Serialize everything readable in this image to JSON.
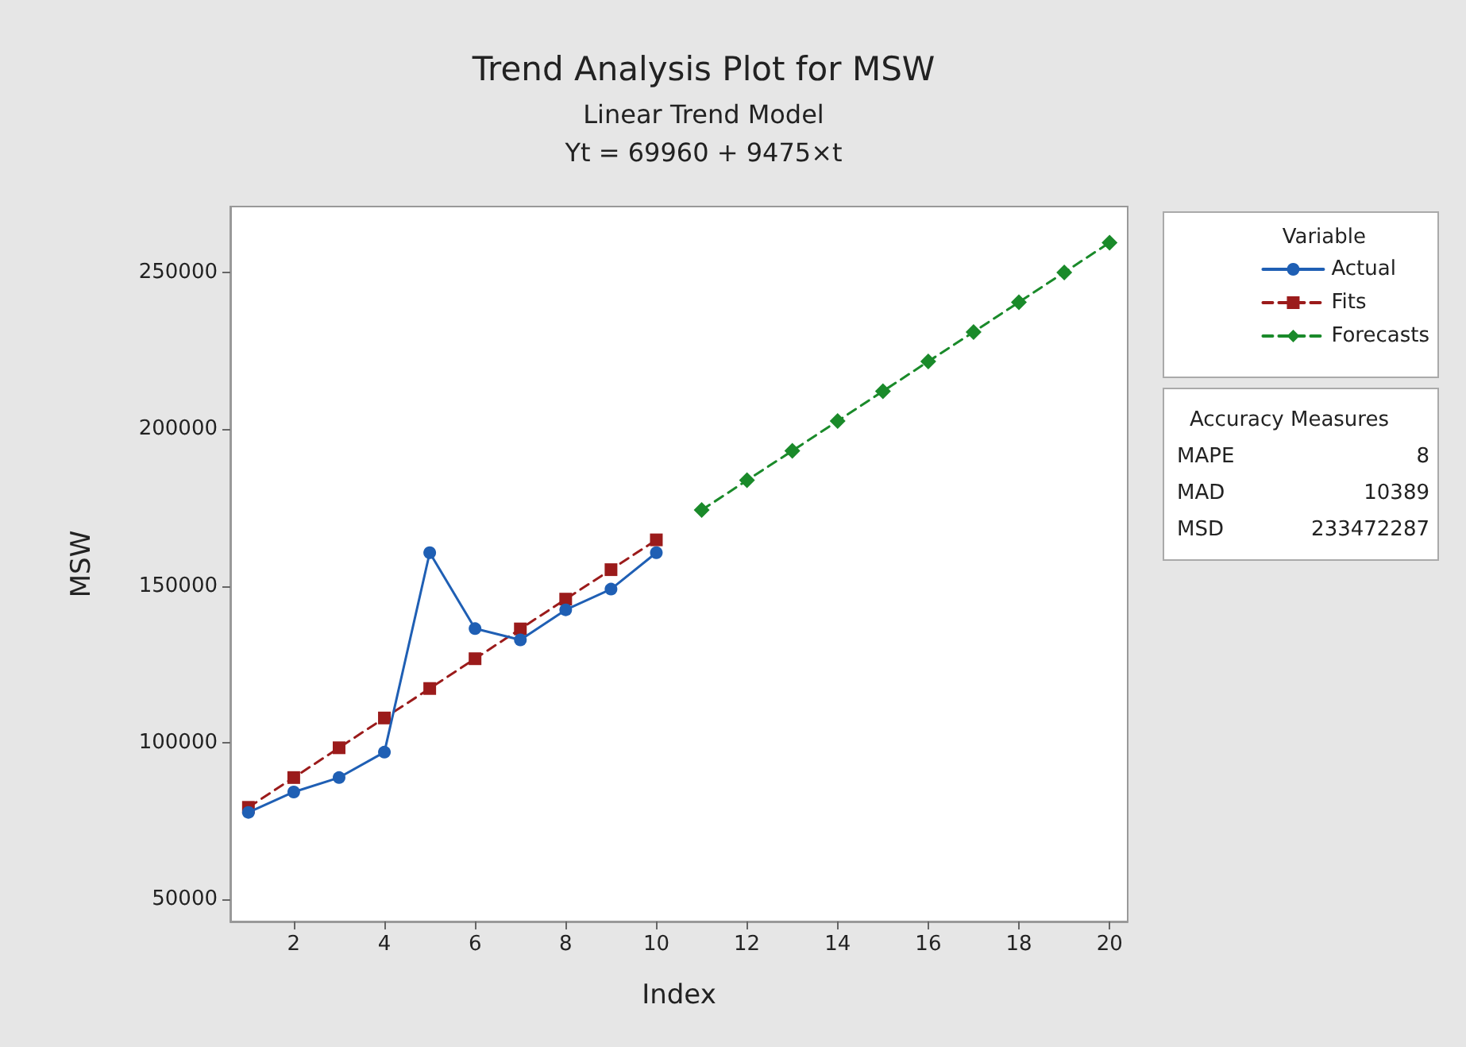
{
  "chart_data": {
    "type": "line",
    "title": "Trend Analysis Plot for MSW",
    "subtitle": "Linear Trend Model\nYt = 69960 + 9475×t",
    "xlabel": "Index",
    "ylabel": "MSW",
    "legend_title": "Variable",
    "xlim": [
      0.6,
      20.4
    ],
    "xticks": [
      2,
      4,
      6,
      8,
      10,
      12,
      14,
      16,
      18,
      20
    ],
    "ylim": [
      43000,
      271000
    ],
    "yticks": [
      50000,
      100000,
      150000,
      200000,
      250000
    ],
    "grid": false,
    "legend": "right",
    "series": [
      {
        "name": "Actual",
        "color": "#1f5fb4",
        "marker": "circle",
        "line_style": "solid",
        "x": [
          1,
          2,
          3,
          4,
          5,
          6,
          7,
          8,
          9,
          10
        ],
        "values": [
          77800,
          84300,
          88900,
          97000,
          160600,
          136400,
          132800,
          142400,
          149000,
          160600
        ]
      },
      {
        "name": "Fits",
        "color": "#9b1b1b",
        "marker": "square",
        "line_style": "dashed",
        "x": [
          1,
          2,
          3,
          4,
          5,
          6,
          7,
          8,
          9,
          10
        ],
        "values": [
          79400,
          88900,
          98400,
          107900,
          117300,
          126800,
          136300,
          145800,
          155200,
          164700
        ]
      },
      {
        "name": "Forecasts",
        "color": "#1a8a2a",
        "marker": "diamond",
        "line_style": "dashed",
        "x": [
          11,
          12,
          13,
          14,
          15,
          16,
          17,
          18,
          19,
          20
        ],
        "values": [
          174200,
          183700,
          193100,
          202600,
          212100,
          221600,
          231000,
          240500,
          250000,
          259500
        ]
      }
    ],
    "annotations": [
      "Accuracy Measures",
      "MAPE 8",
      "MAD 10389",
      "MSD 233472287"
    ]
  }
}
